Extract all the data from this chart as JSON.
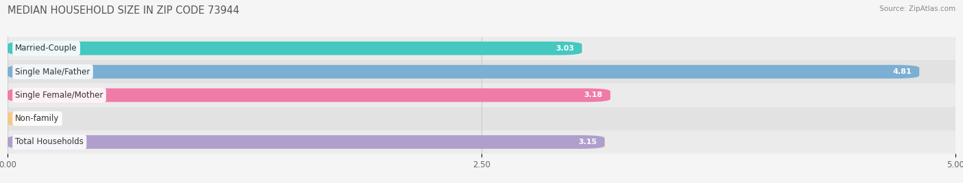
{
  "title": "MEDIAN HOUSEHOLD SIZE IN ZIP CODE 73944",
  "source": "Source: ZipAtlas.com",
  "categories": [
    "Married-Couple",
    "Single Male/Father",
    "Single Female/Mother",
    "Non-family",
    "Total Households"
  ],
  "values": [
    3.03,
    4.81,
    3.18,
    0.0,
    3.15
  ],
  "bar_colors": [
    "#45c8c0",
    "#7bafd4",
    "#f07aa8",
    "#f5c88a",
    "#b09fcc"
  ],
  "xlim": [
    0,
    5.0
  ],
  "xticks": [
    0.0,
    2.5,
    5.0
  ],
  "xtick_labels": [
    "0.00",
    "2.50",
    "5.00"
  ],
  "bar_height": 0.58,
  "background_color": "#f5f5f5",
  "title_fontsize": 10.5,
  "label_fontsize": 8.5,
  "value_fontsize": 8.0
}
